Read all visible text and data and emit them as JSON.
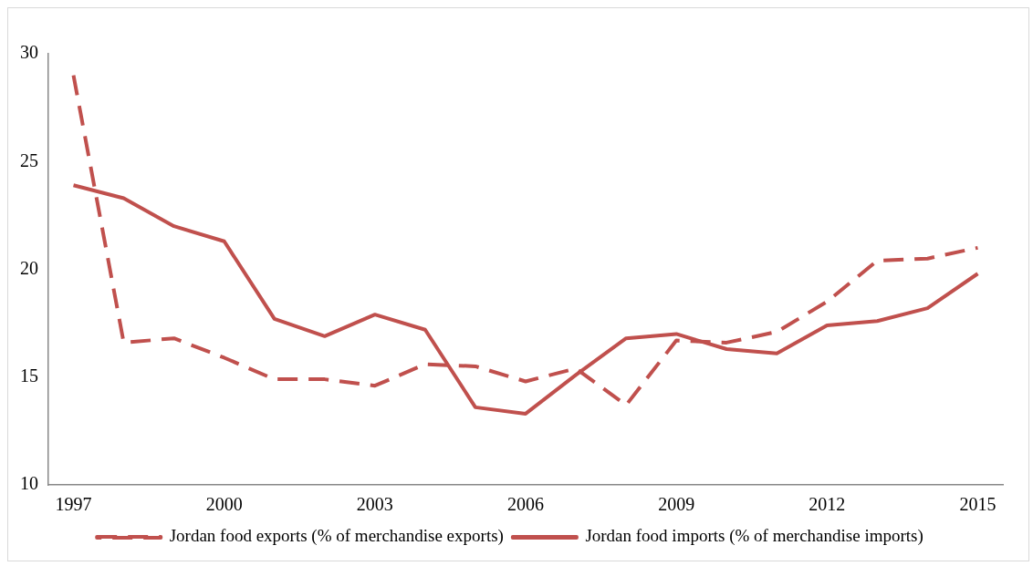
{
  "chart_data": {
    "type": "line",
    "categories": [
      "1997",
      null,
      null,
      "2000",
      null,
      null,
      "2003",
      null,
      null,
      "2006",
      null,
      null,
      "2009",
      null,
      null,
      "2012",
      null,
      null,
      "2015"
    ],
    "series": [
      {
        "name": "Jordan food exports (% of merchandise exports)",
        "color": "#c0504d",
        "line_style": "dashed",
        "values": [
          29.0,
          16.6,
          16.8,
          15.9,
          14.9,
          14.9,
          14.6,
          15.6,
          15.5,
          14.8,
          15.4,
          13.7,
          16.7,
          16.6,
          17.1,
          18.5,
          20.4,
          20.5,
          21.0
        ]
      },
      {
        "name": "Jordan food imports (% of merchandise imports)",
        "color": "#c0504d",
        "line_style": "solid",
        "values": [
          23.9,
          23.3,
          22.0,
          21.3,
          17.7,
          16.9,
          17.9,
          17.2,
          13.6,
          13.3,
          15.1,
          16.8,
          17.0,
          16.3,
          16.1,
          17.4,
          17.6,
          18.2,
          19.8
        ]
      }
    ],
    "ylim": [
      10,
      30
    ],
    "yticks": [
      10,
      15,
      20,
      25,
      30
    ],
    "grid": false,
    "legend": "bottom",
    "marker": "none"
  }
}
